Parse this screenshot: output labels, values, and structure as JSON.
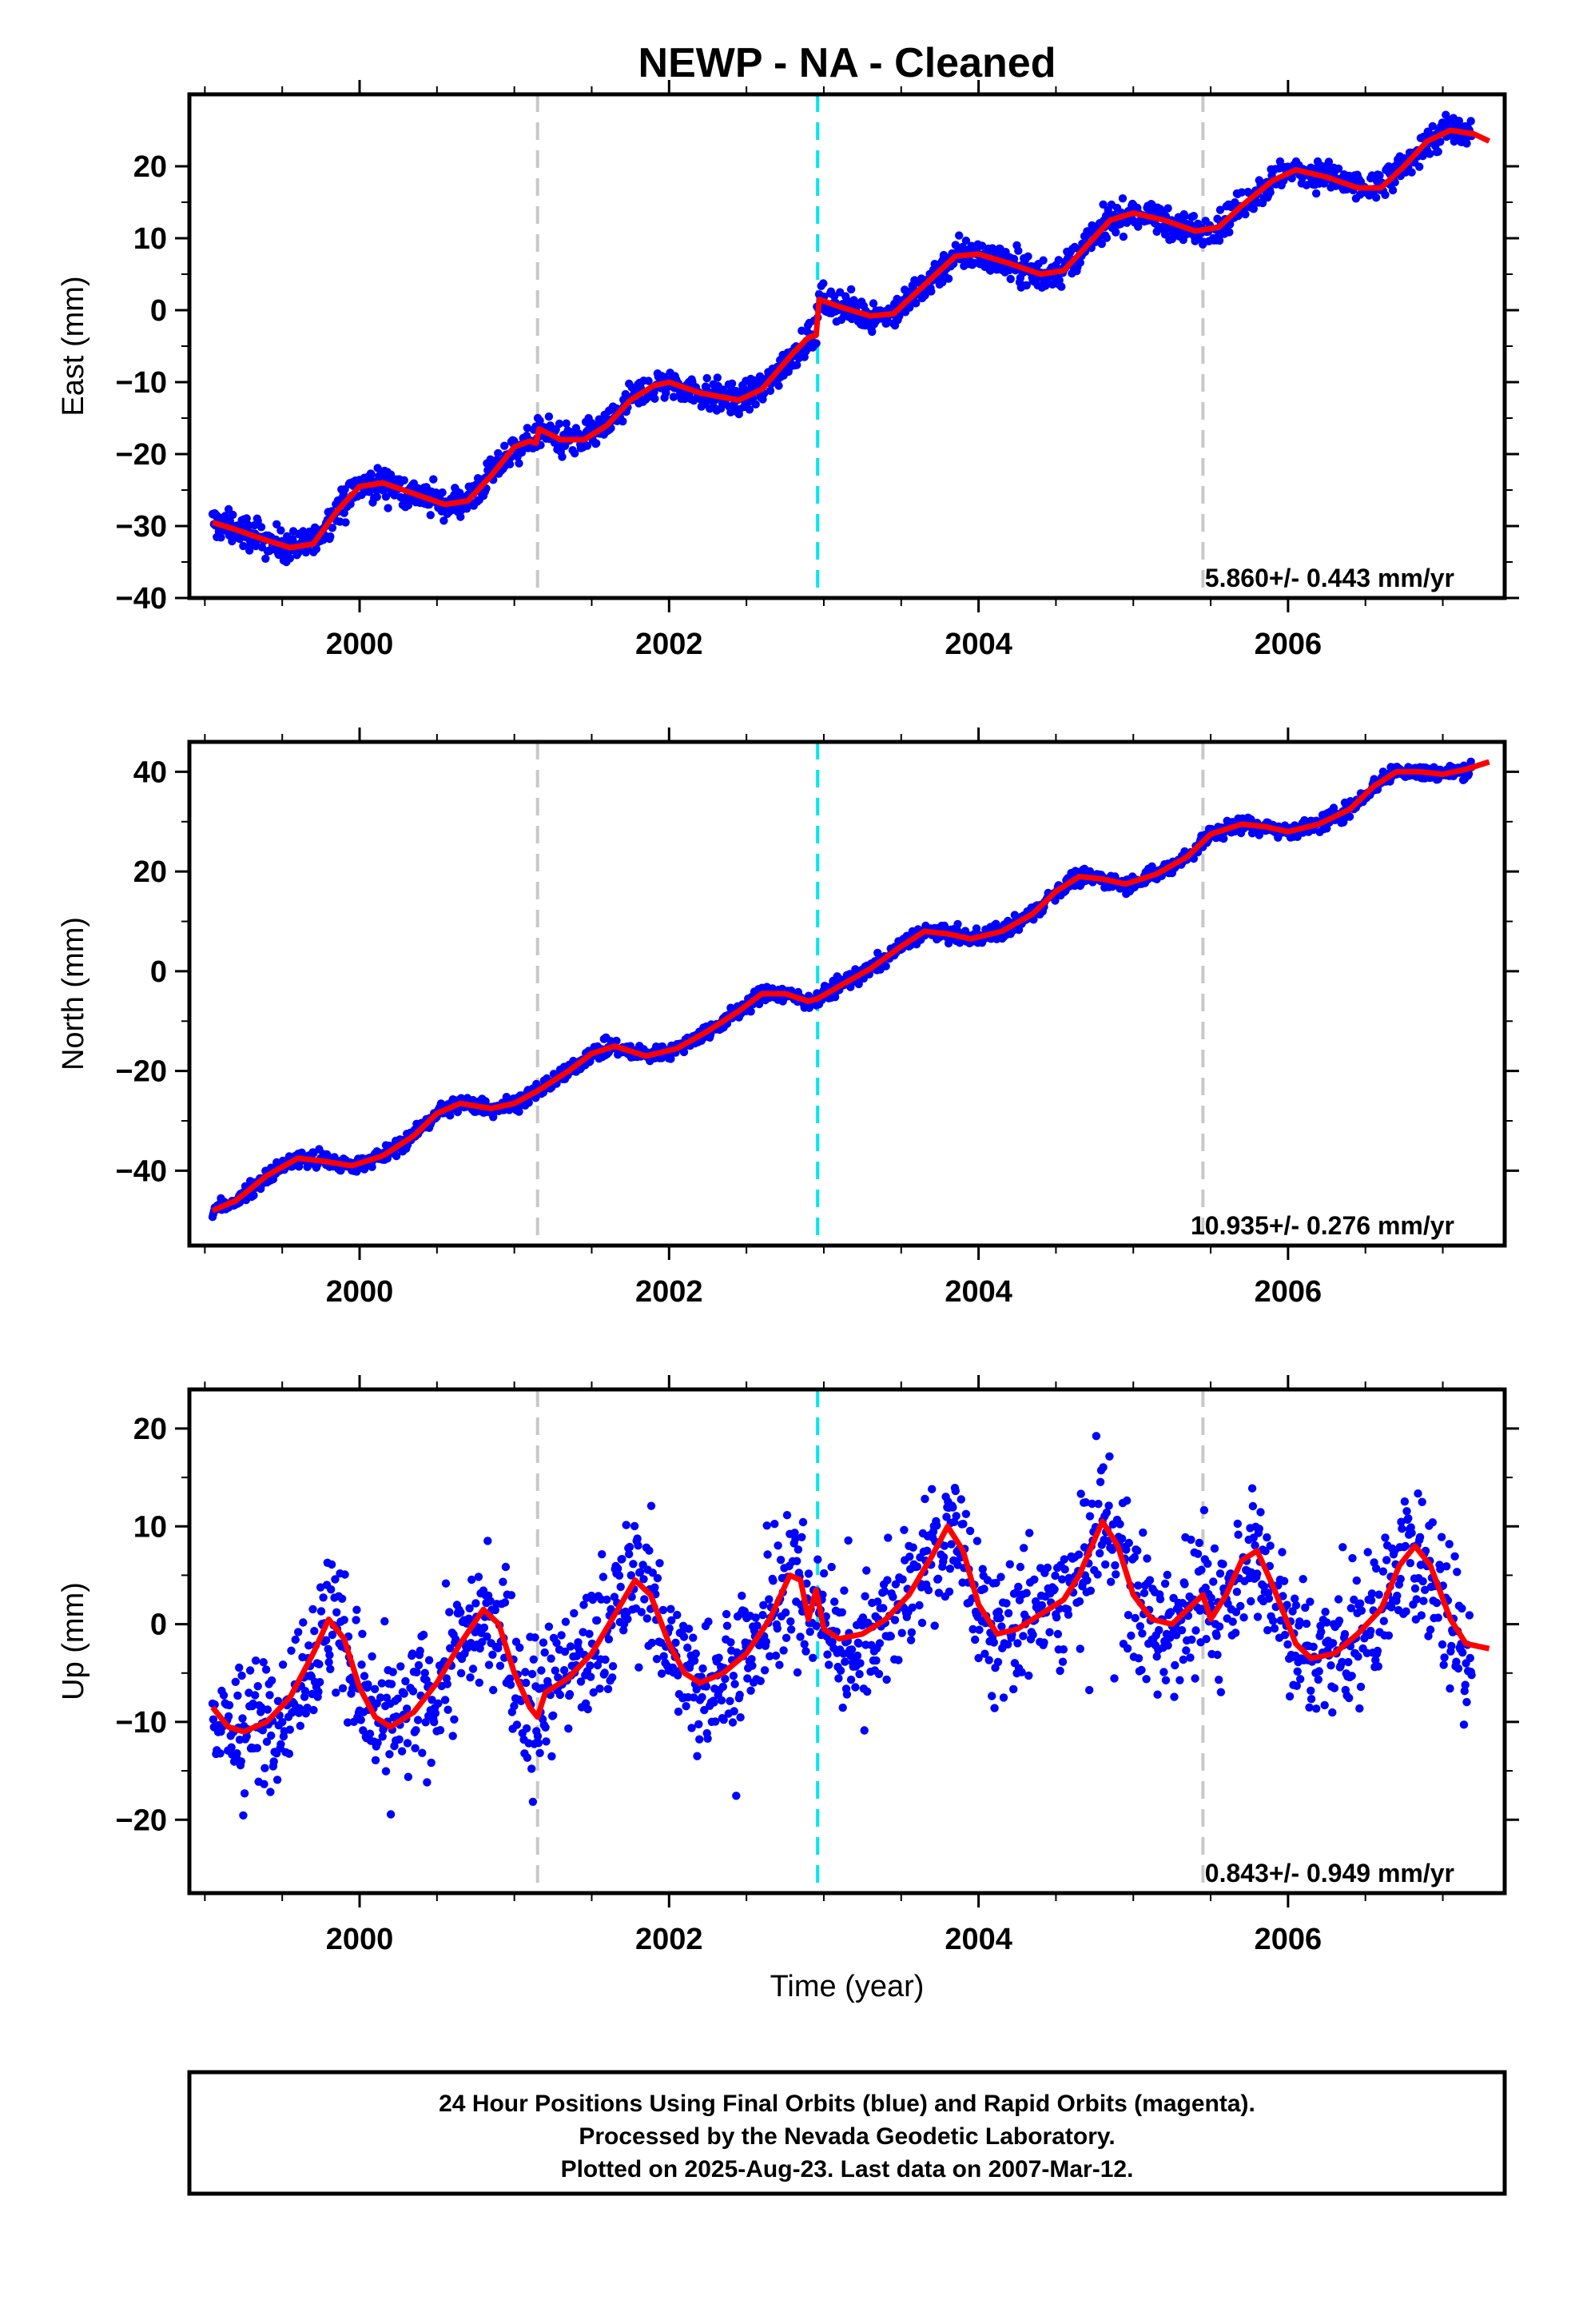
{
  "chart_data": {
    "type": "scatter",
    "title": "NEWP  - NA - Cleaned",
    "xlabel": "Time (year)",
    "x_range": [
      1998.9,
      2007.4
    ],
    "x_ticks": [
      2000,
      2002,
      2004,
      2006
    ],
    "x_tick_labels": [
      "2000",
      "2002",
      "2004",
      "2006"
    ],
    "vertical_lines": [
      {
        "x": 2001.15,
        "color": "#c8c8c8",
        "style": "dashed"
      },
      {
        "x": 2002.96,
        "color": "#00e5ee",
        "style": "dashed"
      },
      {
        "x": 2005.45,
        "color": "#c8c8c8",
        "style": "dashed"
      }
    ],
    "point_color": "#0000ff",
    "fit_color": "#ff0000",
    "panels": [
      {
        "id": "east",
        "ylabel": "East (mm)",
        "ylim": [
          -40,
          30
        ],
        "y_ticks": [
          -40,
          -30,
          -20,
          -10,
          0,
          10,
          20
        ],
        "y_tick_labels": [
          "−40",
          "−30",
          "−20",
          "−10",
          "0",
          "10",
          "20"
        ],
        "rate_label": "5.860+/- 0.443 mm/yr",
        "fit_line": [
          [
            1999.05,
            -29.5
          ],
          [
            1999.2,
            -30.5
          ],
          [
            1999.4,
            -32
          ],
          [
            1999.55,
            -33
          ],
          [
            1999.7,
            -32.5
          ],
          [
            1999.85,
            -28
          ],
          [
            2000.0,
            -24.5
          ],
          [
            2000.15,
            -24
          ],
          [
            2000.35,
            -25.5
          ],
          [
            2000.55,
            -27
          ],
          [
            2000.7,
            -26.5
          ],
          [
            2000.85,
            -23
          ],
          [
            2001.0,
            -19
          ],
          [
            2001.1,
            -18.2
          ],
          [
            2001.14,
            -18.5
          ],
          [
            2001.16,
            -16.5
          ],
          [
            2001.3,
            -18
          ],
          [
            2001.45,
            -18
          ],
          [
            2001.6,
            -16
          ],
          [
            2001.75,
            -12.5
          ],
          [
            2001.9,
            -10.5
          ],
          [
            2002.0,
            -10
          ],
          [
            2002.2,
            -11.5
          ],
          [
            2002.45,
            -12.5
          ],
          [
            2002.6,
            -11
          ],
          [
            2002.8,
            -6
          ],
          [
            2002.9,
            -3.8
          ],
          [
            2002.95,
            -3.5
          ],
          [
            2002.97,
            1.5
          ],
          [
            2003.1,
            0.5
          ],
          [
            2003.3,
            -0.8
          ],
          [
            2003.45,
            -0.5
          ],
          [
            2003.65,
            3.5
          ],
          [
            2003.85,
            7.5
          ],
          [
            2004.0,
            7.8
          ],
          [
            2004.2,
            6.5
          ],
          [
            2004.4,
            5
          ],
          [
            2004.55,
            5.5
          ],
          [
            2004.7,
            9
          ],
          [
            2004.85,
            12.5
          ],
          [
            2005.0,
            13.5
          ],
          [
            2005.2,
            12.5
          ],
          [
            2005.4,
            11
          ],
          [
            2005.55,
            11.5
          ],
          [
            2005.7,
            14.5
          ],
          [
            2005.9,
            18
          ],
          [
            2006.05,
            19.5
          ],
          [
            2006.25,
            18.5
          ],
          [
            2006.45,
            17
          ],
          [
            2006.6,
            17
          ],
          [
            2006.75,
            20
          ],
          [
            2006.9,
            23.5
          ],
          [
            2007.05,
            25
          ],
          [
            2007.2,
            24.5
          ],
          [
            2007.3,
            23.5
          ]
        ]
      },
      {
        "id": "north",
        "ylabel": "North (mm)",
        "ylim": [
          -55,
          46
        ],
        "y_ticks": [
          -40,
          -20,
          0,
          20,
          40
        ],
        "y_tick_labels": [
          "−40",
          "−20",
          "0",
          "20",
          "40"
        ],
        "rate_label": "10.935+/- 0.276 mm/yr",
        "fit_line": [
          [
            1999.05,
            -48
          ],
          [
            1999.2,
            -46
          ],
          [
            1999.4,
            -41
          ],
          [
            1999.6,
            -37.5
          ],
          [
            1999.75,
            -38
          ],
          [
            1999.95,
            -39
          ],
          [
            2000.15,
            -37
          ],
          [
            2000.35,
            -33
          ],
          [
            2000.5,
            -28.5
          ],
          [
            2000.65,
            -26.5
          ],
          [
            2000.85,
            -27.5
          ],
          [
            2001.0,
            -26.5
          ],
          [
            2001.15,
            -24
          ],
          [
            2001.35,
            -20
          ],
          [
            2001.5,
            -16.5
          ],
          [
            2001.65,
            -15
          ],
          [
            2001.85,
            -17
          ],
          [
            2002.05,
            -15.5
          ],
          [
            2002.25,
            -12
          ],
          [
            2002.45,
            -8
          ],
          [
            2002.6,
            -4.5
          ],
          [
            2002.75,
            -4.5
          ],
          [
            2002.9,
            -6
          ],
          [
            2002.96,
            -5.5
          ],
          [
            2003.1,
            -3
          ],
          [
            2003.3,
            0.5
          ],
          [
            2003.5,
            5
          ],
          [
            2003.65,
            8
          ],
          [
            2003.8,
            7.5
          ],
          [
            2003.95,
            6.5
          ],
          [
            2004.15,
            8
          ],
          [
            2004.35,
            11.5
          ],
          [
            2004.5,
            16
          ],
          [
            2004.65,
            19
          ],
          [
            2004.8,
            18.5
          ],
          [
            2004.95,
            17.5
          ],
          [
            2005.15,
            19.5
          ],
          [
            2005.35,
            23
          ],
          [
            2005.5,
            27.5
          ],
          [
            2005.7,
            29.5
          ],
          [
            2005.85,
            29
          ],
          [
            2006.0,
            28
          ],
          [
            2006.2,
            29.5
          ],
          [
            2006.4,
            32.5
          ],
          [
            2006.55,
            37
          ],
          [
            2006.7,
            40
          ],
          [
            2006.85,
            40
          ],
          [
            2007.0,
            39.5
          ],
          [
            2007.15,
            40.5
          ],
          [
            2007.3,
            42
          ]
        ]
      },
      {
        "id": "up",
        "ylabel": "Up (mm)",
        "ylim": [
          -27.5,
          24
        ],
        "y_ticks": [
          -20,
          -10,
          0,
          10,
          20
        ],
        "y_tick_labels": [
          "−20",
          "−10",
          "0",
          "10",
          "20"
        ],
        "rate_label": "0.843+/- 0.949 mm/yr",
        "fit_line": [
          [
            1999.05,
            -8.5
          ],
          [
            1999.15,
            -10.5
          ],
          [
            1999.25,
            -11
          ],
          [
            1999.4,
            -10
          ],
          [
            1999.55,
            -7.5
          ],
          [
            1999.7,
            -3
          ],
          [
            1999.8,
            0.5
          ],
          [
            1999.9,
            -1.5
          ],
          [
            2000.0,
            -6.5
          ],
          [
            2000.1,
            -9.5
          ],
          [
            2000.2,
            -10.5
          ],
          [
            2000.35,
            -9
          ],
          [
            2000.5,
            -6
          ],
          [
            2000.65,
            -2
          ],
          [
            2000.8,
            1.5
          ],
          [
            2000.9,
            0
          ],
          [
            2001.0,
            -5
          ],
          [
            2001.1,
            -8.5
          ],
          [
            2001.15,
            -9.5
          ],
          [
            2001.2,
            -7
          ],
          [
            2001.35,
            -5.5
          ],
          [
            2001.5,
            -3
          ],
          [
            2001.65,
            1
          ],
          [
            2001.78,
            4.5
          ],
          [
            2001.88,
            3
          ],
          [
            2002.0,
            -2
          ],
          [
            2002.1,
            -5
          ],
          [
            2002.2,
            -6
          ],
          [
            2002.35,
            -5
          ],
          [
            2002.5,
            -3
          ],
          [
            2002.65,
            0.5
          ],
          [
            2002.78,
            5
          ],
          [
            2002.85,
            4.5
          ],
          [
            2002.9,
            0.5
          ],
          [
            2002.95,
            3.5
          ],
          [
            2003.0,
            -0.5
          ],
          [
            2003.1,
            -1.5
          ],
          [
            2003.25,
            -1
          ],
          [
            2003.4,
            0.5
          ],
          [
            2003.55,
            3
          ],
          [
            2003.7,
            7
          ],
          [
            2003.8,
            10
          ],
          [
            2003.9,
            7.5
          ],
          [
            2004.0,
            2
          ],
          [
            2004.12,
            -1
          ],
          [
            2004.25,
            -0.5
          ],
          [
            2004.4,
            1
          ],
          [
            2004.55,
            2.5
          ],
          [
            2004.65,
            5
          ],
          [
            2004.8,
            10.5
          ],
          [
            2004.9,
            8
          ],
          [
            2005.0,
            3
          ],
          [
            2005.12,
            0.5
          ],
          [
            2005.25,
            0
          ],
          [
            2005.35,
            1.5
          ],
          [
            2005.45,
            3
          ],
          [
            2005.5,
            0.5
          ],
          [
            2005.6,
            3
          ],
          [
            2005.7,
            6.5
          ],
          [
            2005.8,
            7.5
          ],
          [
            2005.9,
            4
          ],
          [
            2006.05,
            -2
          ],
          [
            2006.15,
            -3.5
          ],
          [
            2006.3,
            -3
          ],
          [
            2006.45,
            -1
          ],
          [
            2006.6,
            1.5
          ],
          [
            2006.72,
            6
          ],
          [
            2006.82,
            8
          ],
          [
            2006.92,
            6
          ],
          [
            2007.05,
            0.5
          ],
          [
            2007.15,
            -2
          ],
          [
            2007.3,
            -2.5
          ]
        ]
      }
    ],
    "footer_lines": [
      "24 Hour Positions Using Final Orbits (blue) and Rapid Orbits (magenta).",
      "Processed by the Nevada Geodetic Laboratory.",
      "Plotted on 2025-Aug-23. Last data on 2007-Mar-12."
    ]
  }
}
